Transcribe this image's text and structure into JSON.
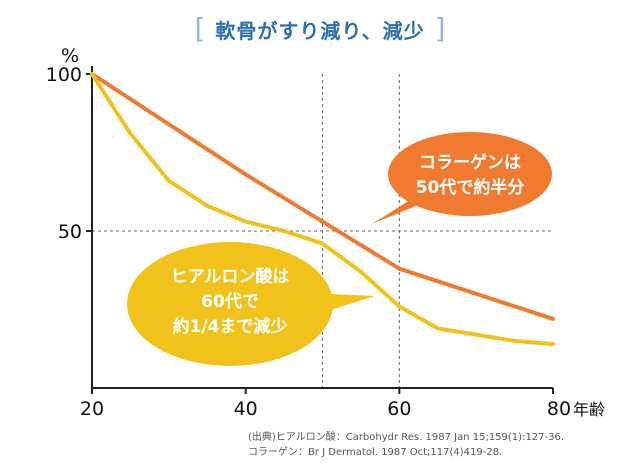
{
  "title": "軟骨がすり減り、減少",
  "title_bracket_left": "[",
  "title_bracket_right": "]",
  "y_unit": "%",
  "x_unit": "年齢",
  "colors": {
    "collagen": "#f07a2f",
    "hyaluronic": "#f1c21b",
    "title": "#2b6fae",
    "bracket": "#8fb7d6",
    "axis": "#222222",
    "guide": "#666666"
  },
  "callouts": {
    "collagen": [
      "コラーゲンは",
      "50代で約半分"
    ],
    "hyaluronic": [
      "ヒアルロン酸は",
      "60代で",
      "約1/4まで減少"
    ]
  },
  "sources": [
    "(出典)ヒアルロン酸：Carbohydr Res. 1987 Jan 15;159(1):127-36.",
    "コラーゲン：Br J Dermatol. 1987 Oct;117(4)419-28."
  ],
  "chart_data": {
    "type": "line",
    "title": "軟骨がすり減り、減少",
    "xlabel": "年齢",
    "ylabel": "%",
    "xlim": [
      20,
      80
    ],
    "ylim": [
      0,
      100
    ],
    "x_ticks": [
      20,
      40,
      60,
      80
    ],
    "y_ticks": [
      50,
      100
    ],
    "guides": {
      "x": [
        50,
        60
      ],
      "y": [
        50
      ]
    },
    "series": [
      {
        "name": "コラーゲン",
        "color": "#f07a2f",
        "x": [
          20,
          30,
          40,
          50,
          60,
          70,
          80
        ],
        "y": [
          100,
          84,
          68,
          53,
          38,
          30,
          22
        ]
      },
      {
        "name": "ヒアルロン酸",
        "color": "#f1c21b",
        "x": [
          20,
          25,
          30,
          35,
          40,
          45,
          50,
          55,
          60,
          65,
          70,
          75,
          80
        ],
        "y": [
          100,
          81,
          66,
          58,
          53,
          50,
          46,
          37,
          26,
          19,
          17,
          15,
          14
        ]
      }
    ]
  }
}
